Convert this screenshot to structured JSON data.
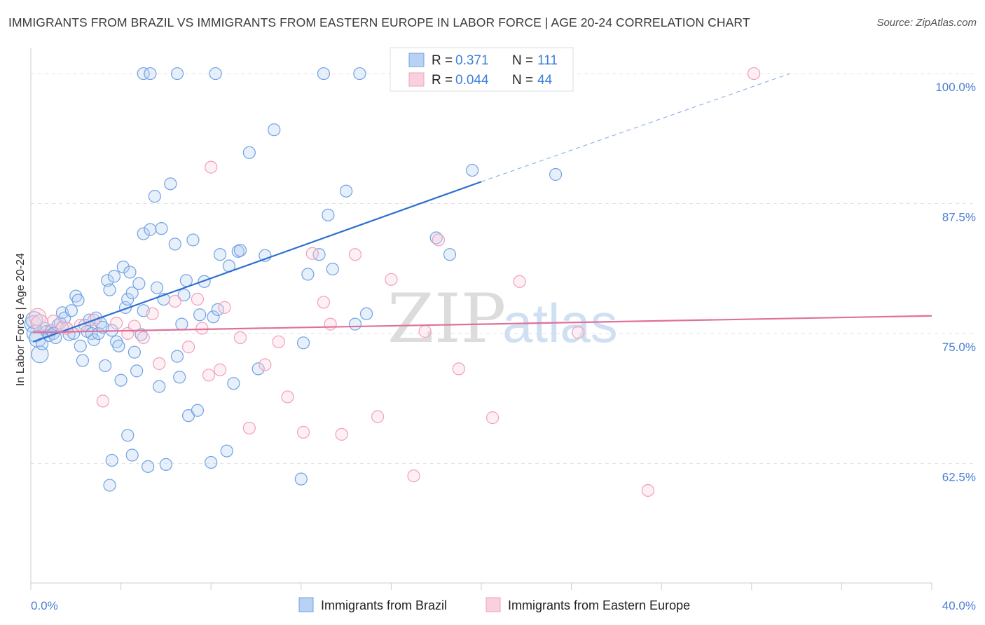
{
  "title": "IMMIGRANTS FROM BRAZIL VS IMMIGRANTS FROM EASTERN EUROPE IN LABOR FORCE | AGE 20-24 CORRELATION CHART",
  "source": "Source: ZipAtlas.com",
  "watermark": {
    "zip": "ZIP",
    "atlas": "atlas"
  },
  "chart_data": {
    "type": "scatter",
    "title": "IMMIGRANTS FROM BRAZIL VS IMMIGRANTS FROM EASTERN EUROPE IN LABOR FORCE | AGE 20-24 CORRELATION CHART",
    "xlabel": "",
    "ylabel": "In Labor Force | Age 20-24",
    "xlim": [
      0,
      40
    ],
    "ylim": [
      51,
      102.5
    ],
    "x_tick_labels": [
      "0.0%",
      "40.0%"
    ],
    "y_ticks": [
      100,
      87.5,
      75,
      62.5
    ],
    "y_tick_labels": [
      "100.0%",
      "87.5%",
      "75.0%",
      "62.5%"
    ],
    "grid": "horizontal dashed",
    "legend_placement": "top-center",
    "series": [
      {
        "name": "Immigrants from Brazil",
        "color": "#6fa3e3",
        "stats": {
          "r_label": "R =",
          "r": "0.371",
          "n_label": "N =",
          "n": "111"
        },
        "trend": {
          "x0": 0.1,
          "y0": 74.2,
          "x1": 20.0,
          "y1": 89.6,
          "dashed_to_x": 33.7,
          "dashed_to_y": 100.0
        },
        "points": [
          [
            0.1,
            75.9
          ],
          [
            0.2,
            75.0
          ],
          [
            0.3,
            74.5
          ],
          [
            0.4,
            73.0
          ],
          [
            0.5,
            74.0
          ],
          [
            0.6,
            75.5
          ],
          [
            0.7,
            75.2
          ],
          [
            0.8,
            74.8
          ],
          [
            0.9,
            75.3
          ],
          [
            1.0,
            75.0
          ],
          [
            1.1,
            74.6
          ],
          [
            1.2,
            75.8
          ],
          [
            1.3,
            76.0
          ],
          [
            1.4,
            77.0
          ],
          [
            1.5,
            76.5
          ],
          [
            1.6,
            75.5
          ],
          [
            1.7,
            74.9
          ],
          [
            1.8,
            77.2
          ],
          [
            1.9,
            75.0
          ],
          [
            2.0,
            78.6
          ],
          [
            2.1,
            78.2
          ],
          [
            2.2,
            73.8
          ],
          [
            2.3,
            72.4
          ],
          [
            2.4,
            75.8
          ],
          [
            2.5,
            75.2
          ],
          [
            2.6,
            76.3
          ],
          [
            2.7,
            75.0
          ],
          [
            2.8,
            74.4
          ],
          [
            2.9,
            76.5
          ],
          [
            3.0,
            75.0
          ],
          [
            3.1,
            76.0
          ],
          [
            3.2,
            75.6
          ],
          [
            3.3,
            71.9
          ],
          [
            3.4,
            80.1
          ],
          [
            3.5,
            79.2
          ],
          [
            3.6,
            75.3
          ],
          [
            3.7,
            80.5
          ],
          [
            3.8,
            74.2
          ],
          [
            3.9,
            73.8
          ],
          [
            4.0,
            70.5
          ],
          [
            4.1,
            81.4
          ],
          [
            4.2,
            77.5
          ],
          [
            4.3,
            78.3
          ],
          [
            4.4,
            80.9
          ],
          [
            4.5,
            78.9
          ],
          [
            4.6,
            73.2
          ],
          [
            4.7,
            71.4
          ],
          [
            4.8,
            79.8
          ],
          [
            4.9,
            74.9
          ],
          [
            5.0,
            77.2
          ],
          [
            3.5,
            60.4
          ],
          [
            3.6,
            62.8
          ],
          [
            4.3,
            65.2
          ],
          [
            4.5,
            63.3
          ],
          [
            5.0,
            84.6
          ],
          [
            5.3,
            85.0
          ],
          [
            5.5,
            88.2
          ],
          [
            5.6,
            79.4
          ],
          [
            5.7,
            69.9
          ],
          [
            5.8,
            85.1
          ],
          [
            5.2,
            62.2
          ],
          [
            5.9,
            78.3
          ],
          [
            6.0,
            62.4
          ],
          [
            6.2,
            89.4
          ],
          [
            6.4,
            83.6
          ],
          [
            6.5,
            72.8
          ],
          [
            6.7,
            75.9
          ],
          [
            6.8,
            78.7
          ],
          [
            6.9,
            80.1
          ],
          [
            7.0,
            67.1
          ],
          [
            7.2,
            84.0
          ],
          [
            7.4,
            67.6
          ],
          [
            7.5,
            76.8
          ],
          [
            7.7,
            80.0
          ],
          [
            8.0,
            62.6
          ],
          [
            8.1,
            76.6
          ],
          [
            8.3,
            77.3
          ],
          [
            8.4,
            82.6
          ],
          [
            8.7,
            63.7
          ],
          [
            8.8,
            81.5
          ],
          [
            9.0,
            70.2
          ],
          [
            9.2,
            82.9
          ],
          [
            9.3,
            83.0
          ],
          [
            9.7,
            92.4
          ],
          [
            10.1,
            71.6
          ],
          [
            10.4,
            82.5
          ],
          [
            10.8,
            94.6
          ],
          [
            12.0,
            61.0
          ],
          [
            12.1,
            74.1
          ],
          [
            12.3,
            80.7
          ],
          [
            12.8,
            82.6
          ],
          [
            13.2,
            86.4
          ],
          [
            13.4,
            81.2
          ],
          [
            14.0,
            88.7
          ],
          [
            14.4,
            75.9
          ],
          [
            14.9,
            76.9
          ],
          [
            18.0,
            84.2
          ],
          [
            18.6,
            82.6
          ],
          [
            19.6,
            90.7
          ],
          [
            23.3,
            90.3
          ],
          [
            6.6,
            70.8
          ],
          [
            5.0,
            100
          ],
          [
            5.3,
            100
          ],
          [
            6.5,
            100
          ],
          [
            8.2,
            100
          ],
          [
            13.0,
            100
          ],
          [
            14.6,
            100
          ],
          [
            16.5,
            100
          ],
          [
            16.8,
            100
          ],
          [
            20.2,
            100
          ],
          [
            0.15,
            76.3
          ]
        ]
      },
      {
        "name": "Immigrants from Eastern Europe",
        "color": "#f0a0bb",
        "stats": {
          "r_label": "R =",
          "r": "0.044",
          "n_label": "N =",
          "n": "44"
        },
        "trend": {
          "x0": 0.1,
          "y0": 75.1,
          "x1": 40.0,
          "y1": 76.7
        },
        "points": [
          [
            0.3,
            76.6
          ],
          [
            1.0,
            76.2
          ],
          [
            1.6,
            75.5
          ],
          [
            2.2,
            75.8
          ],
          [
            2.8,
            76.3
          ],
          [
            3.2,
            68.5
          ],
          [
            3.8,
            76.0
          ],
          [
            4.3,
            75.0
          ],
          [
            4.6,
            75.7
          ],
          [
            5.0,
            74.6
          ],
          [
            5.4,
            76.9
          ],
          [
            5.7,
            72.1
          ],
          [
            6.4,
            78.1
          ],
          [
            7.0,
            73.7
          ],
          [
            7.4,
            78.3
          ],
          [
            7.6,
            75.5
          ],
          [
            7.9,
            71.0
          ],
          [
            8.0,
            91.0
          ],
          [
            8.4,
            71.5
          ],
          [
            8.6,
            77.5
          ],
          [
            9.3,
            74.6
          ],
          [
            9.7,
            65.9
          ],
          [
            10.4,
            72.0
          ],
          [
            11.0,
            74.2
          ],
          [
            11.4,
            68.9
          ],
          [
            12.1,
            65.5
          ],
          [
            12.5,
            82.7
          ],
          [
            13.0,
            78.0
          ],
          [
            13.3,
            75.9
          ],
          [
            13.8,
            65.3
          ],
          [
            14.4,
            82.6
          ],
          [
            15.4,
            67.0
          ],
          [
            16.0,
            80.2
          ],
          [
            17.0,
            61.3
          ],
          [
            17.5,
            75.2
          ],
          [
            18.1,
            84.0
          ],
          [
            19.0,
            71.6
          ],
          [
            20.5,
            66.9
          ],
          [
            21.7,
            80.0
          ],
          [
            24.3,
            75.1
          ],
          [
            27.4,
            59.9
          ],
          [
            32.1,
            100
          ],
          [
            0.4,
            76.0
          ],
          [
            1.4,
            75.6
          ]
        ]
      }
    ]
  }
}
